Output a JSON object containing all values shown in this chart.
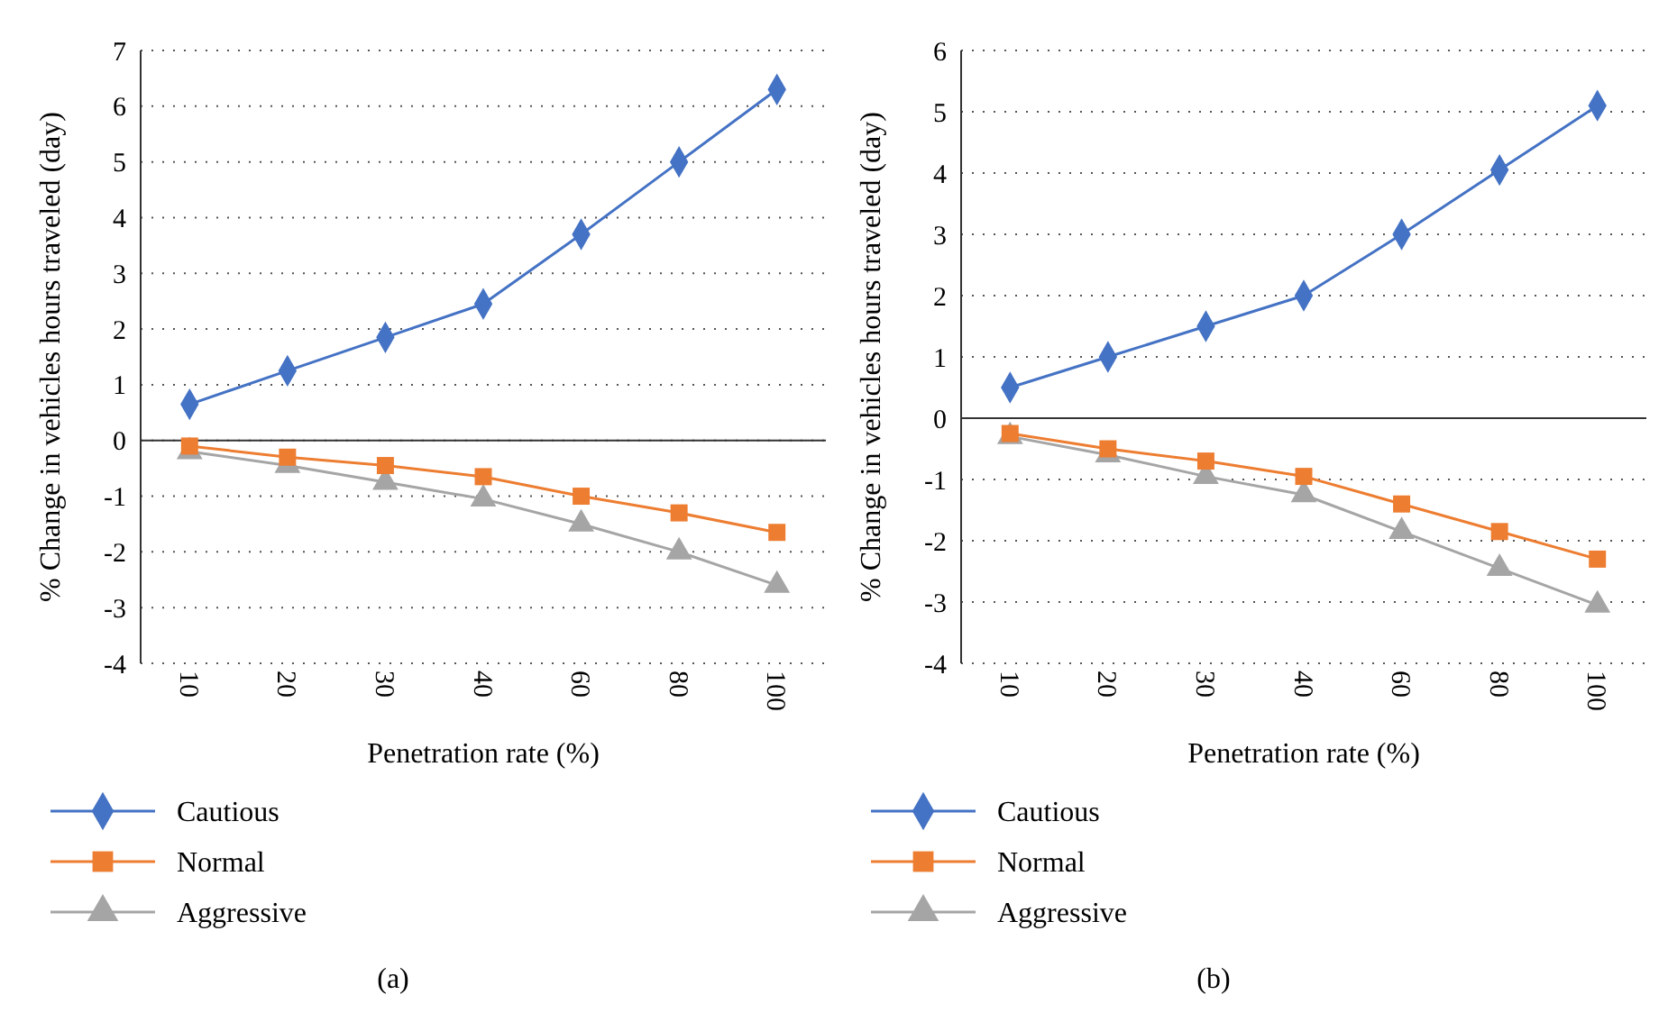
{
  "chart_data": [
    {
      "type": "line",
      "categories": [
        "10",
        "20",
        "30",
        "40",
        "60",
        "80",
        "100"
      ],
      "xlabel": "Penetration rate (%)",
      "ylabel": "% Change in vehicles hours traveled (day)",
      "ylim": [
        -4,
        7
      ],
      "yticks": [
        -4,
        -3,
        -2,
        -1,
        0,
        1,
        2,
        3,
        4,
        5,
        6,
        7
      ],
      "grid": "y",
      "legend": "bottom left",
      "annotations": [
        "(a)"
      ],
      "series": [
        {
          "name": "Cautious",
          "color": "#4472c4",
          "marker": "diamond",
          "values": [
            0.65,
            1.25,
            1.85,
            2.45,
            3.7,
            5.0,
            6.3
          ]
        },
        {
          "name": "Normal",
          "color": "#ed7d31",
          "marker": "square",
          "values": [
            -0.1,
            -0.3,
            -0.45,
            -0.65,
            -1.0,
            -1.3,
            -1.65
          ]
        },
        {
          "name": "Aggressive",
          "color": "#a5a5a5",
          "marker": "triangle",
          "values": [
            -0.2,
            -0.45,
            -0.75,
            -1.05,
            -1.5,
            -2.0,
            -2.6
          ]
        }
      ]
    },
    {
      "type": "line",
      "categories": [
        "10",
        "20",
        "30",
        "40",
        "60",
        "80",
        "100"
      ],
      "xlabel": "Penetration rate (%)",
      "ylabel": "% Change in vehicles hours traveled (day)",
      "ylim": [
        -4,
        6
      ],
      "yticks": [
        -4,
        -3,
        -2,
        -1,
        0,
        1,
        2,
        3,
        4,
        5,
        6
      ],
      "grid": "y",
      "legend": "bottom left",
      "annotations": [
        "(b)"
      ],
      "series": [
        {
          "name": "Cautious",
          "color": "#4472c4",
          "marker": "diamond",
          "values": [
            0.5,
            1.0,
            1.5,
            2.0,
            3.0,
            4.05,
            5.1
          ]
        },
        {
          "name": "Normal",
          "color": "#ed7d31",
          "marker": "square",
          "values": [
            -0.25,
            -0.5,
            -0.7,
            -0.95,
            -1.4,
            -1.85,
            -2.3
          ]
        },
        {
          "name": "Aggressive",
          "color": "#a5a5a5",
          "marker": "triangle",
          "values": [
            -0.3,
            -0.6,
            -0.95,
            -1.25,
            -1.85,
            -2.45,
            -3.05
          ]
        }
      ]
    }
  ]
}
